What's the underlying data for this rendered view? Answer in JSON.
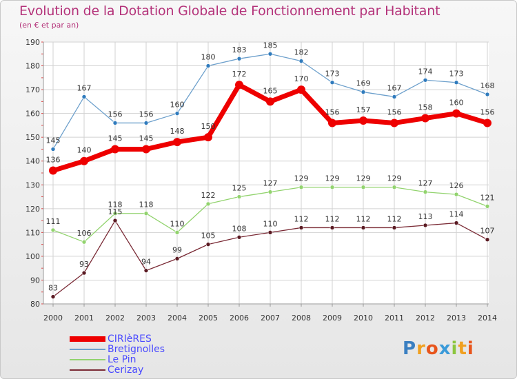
{
  "title": "Evolution de la Dotation Globale de Fonctionnement par Habitant",
  "subtitle": "(en € et par an)",
  "logo": {
    "text": "Proxiti",
    "letters": [
      "P",
      "r",
      "o",
      "x",
      "i",
      "t",
      "i"
    ],
    "colors": [
      "#3a7fc1",
      "#f0a020",
      "#e8551c",
      "#3a9ad9",
      "#8cc63f",
      "#f0a020",
      "#e8551c"
    ]
  },
  "chart_data": {
    "type": "line",
    "x": [
      "2000",
      "2001",
      "2002",
      "2003",
      "2004",
      "2005",
      "2006",
      "2007",
      "2008",
      "2009",
      "2010",
      "2011",
      "2012",
      "2013",
      "2014"
    ],
    "ylim": [
      80,
      190
    ],
    "yticks": [
      80,
      90,
      100,
      110,
      120,
      130,
      140,
      150,
      160,
      170,
      180,
      190
    ],
    "grid": true,
    "legend_position": "bottom-left",
    "series": [
      {
        "name": "CIRIèRES",
        "values": [
          136,
          140,
          145,
          145,
          148,
          150,
          172,
          165,
          170,
          156,
          157,
          156,
          158,
          160,
          156
        ],
        "color": "#ee0000",
        "marker": "#ee0000",
        "emphasis": true
      },
      {
        "name": "Bretignolles",
        "values": [
          145,
          167,
          156,
          156,
          160,
          180,
          183,
          185,
          182,
          173,
          169,
          167,
          174,
          173,
          168
        ],
        "color": "#6da0cc",
        "marker": "#2f7bbd",
        "emphasis": false
      },
      {
        "name": "Le Pin",
        "values": [
          111,
          106,
          118,
          118,
          110,
          122,
          125,
          127,
          129,
          129,
          129,
          129,
          127,
          126,
          121
        ],
        "color": "#92d36e",
        "marker": "#92d36e",
        "emphasis": false
      },
      {
        "name": "Cerizay",
        "values": [
          83,
          93,
          115,
          94,
          99,
          105,
          108,
          110,
          112,
          112,
          112,
          112,
          113,
          114,
          107
        ],
        "color": "#7a2a35",
        "marker": "#5a1a22",
        "emphasis": false
      }
    ]
  },
  "legend": [
    {
      "label": "CIRIèRES",
      "color": "#ee0000",
      "text_color": "#4a4aff",
      "weight": 8
    },
    {
      "label": "Bretignolles",
      "color": "#6da0cc",
      "text_color": "#4a4aff",
      "weight": 2
    },
    {
      "label": "Le Pin",
      "color": "#92d36e",
      "text_color": "#4a4aff",
      "weight": 2
    },
    {
      "label": "Cerizay",
      "color": "#7a2a35",
      "text_color": "#4a4aff",
      "weight": 2
    }
  ]
}
